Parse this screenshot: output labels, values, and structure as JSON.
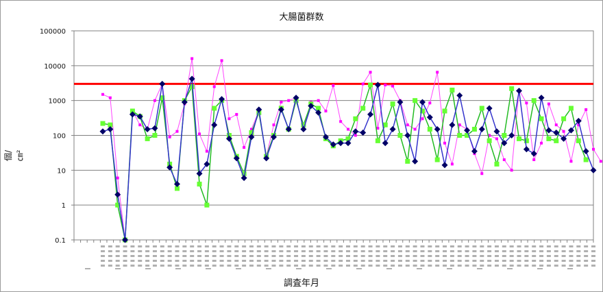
{
  "chart_data": {
    "type": "line",
    "title": "大腸菌群数",
    "xlabel": "調査年月",
    "ylabel": "個/㎝²",
    "y_scale": "log",
    "ylim": [
      0.1,
      100000
    ],
    "y_tick_labels": [
      "0.1",
      "1",
      "10",
      "100",
      "1000",
      "10000",
      "100000"
    ],
    "grid": true,
    "reference_line": {
      "value": 3000,
      "color": "#ff0000"
    },
    "colors": {
      "s1": "#000066",
      "s2": "#66ff33",
      "s3": "#ff00ff",
      "s1_line": "#3333cc",
      "s2_line": "#22bb22",
      "s3_line": "#ff44ff"
    },
    "series": [
      {
        "values": [
          130,
          150,
          2,
          0.1,
          400,
          350,
          150,
          160,
          3000,
          12,
          4,
          900,
          4200,
          8,
          15,
          200,
          1100,
          80,
          22,
          6,
          90,
          550,
          22,
          90,
          550,
          150,
          1200,
          150,
          700,
          450,
          90,
          55,
          60,
          60,
          130,
          120,
          400,
          2800,
          60,
          150,
          900,
          100,
          18,
          900,
          330,
          150,
          14,
          200,
          1400,
          140,
          35,
          150,
          600,
          130,
          60,
          100,
          1900,
          40,
          30,
          1200,
          140,
          120,
          80,
          140,
          260,
          35,
          10
        ]
      },
      {
        "values": [
          220,
          200,
          1,
          0.1,
          500,
          350,
          80,
          100,
          1200,
          15,
          3,
          1000,
          2500,
          4,
          1,
          600,
          1000,
          100,
          25,
          8,
          120,
          450,
          25,
          100,
          600,
          150,
          1000,
          200,
          800,
          600,
          80,
          50,
          70,
          80,
          300,
          600,
          2800,
          70,
          200,
          800,
          100,
          18,
          1000,
          500,
          150,
          20,
          500,
          2000,
          100,
          100,
          150,
          600,
          70,
          15,
          100,
          2200,
          80,
          70,
          1000,
          300,
          80,
          70,
          300,
          600,
          70,
          20
        ]
      },
      {
        "values": [
          1500,
          1200,
          6,
          0.1,
          500,
          200,
          150,
          1000,
          3000,
          90,
          130,
          800,
          16000,
          110,
          35,
          2500,
          14000,
          300,
          400,
          45,
          150,
          500,
          25,
          200,
          900,
          1000,
          1200,
          150,
          900,
          1000,
          500,
          2700,
          250,
          150,
          100,
          3000,
          6500,
          160,
          2800,
          2600,
          1000,
          200,
          150,
          300,
          850,
          6500,
          60,
          15,
          200,
          150,
          30,
          8,
          100,
          80,
          20,
          10,
          2000,
          850,
          20,
          60,
          800,
          200,
          130,
          18,
          200,
          550,
          40,
          18
        ]
      }
    ]
  }
}
